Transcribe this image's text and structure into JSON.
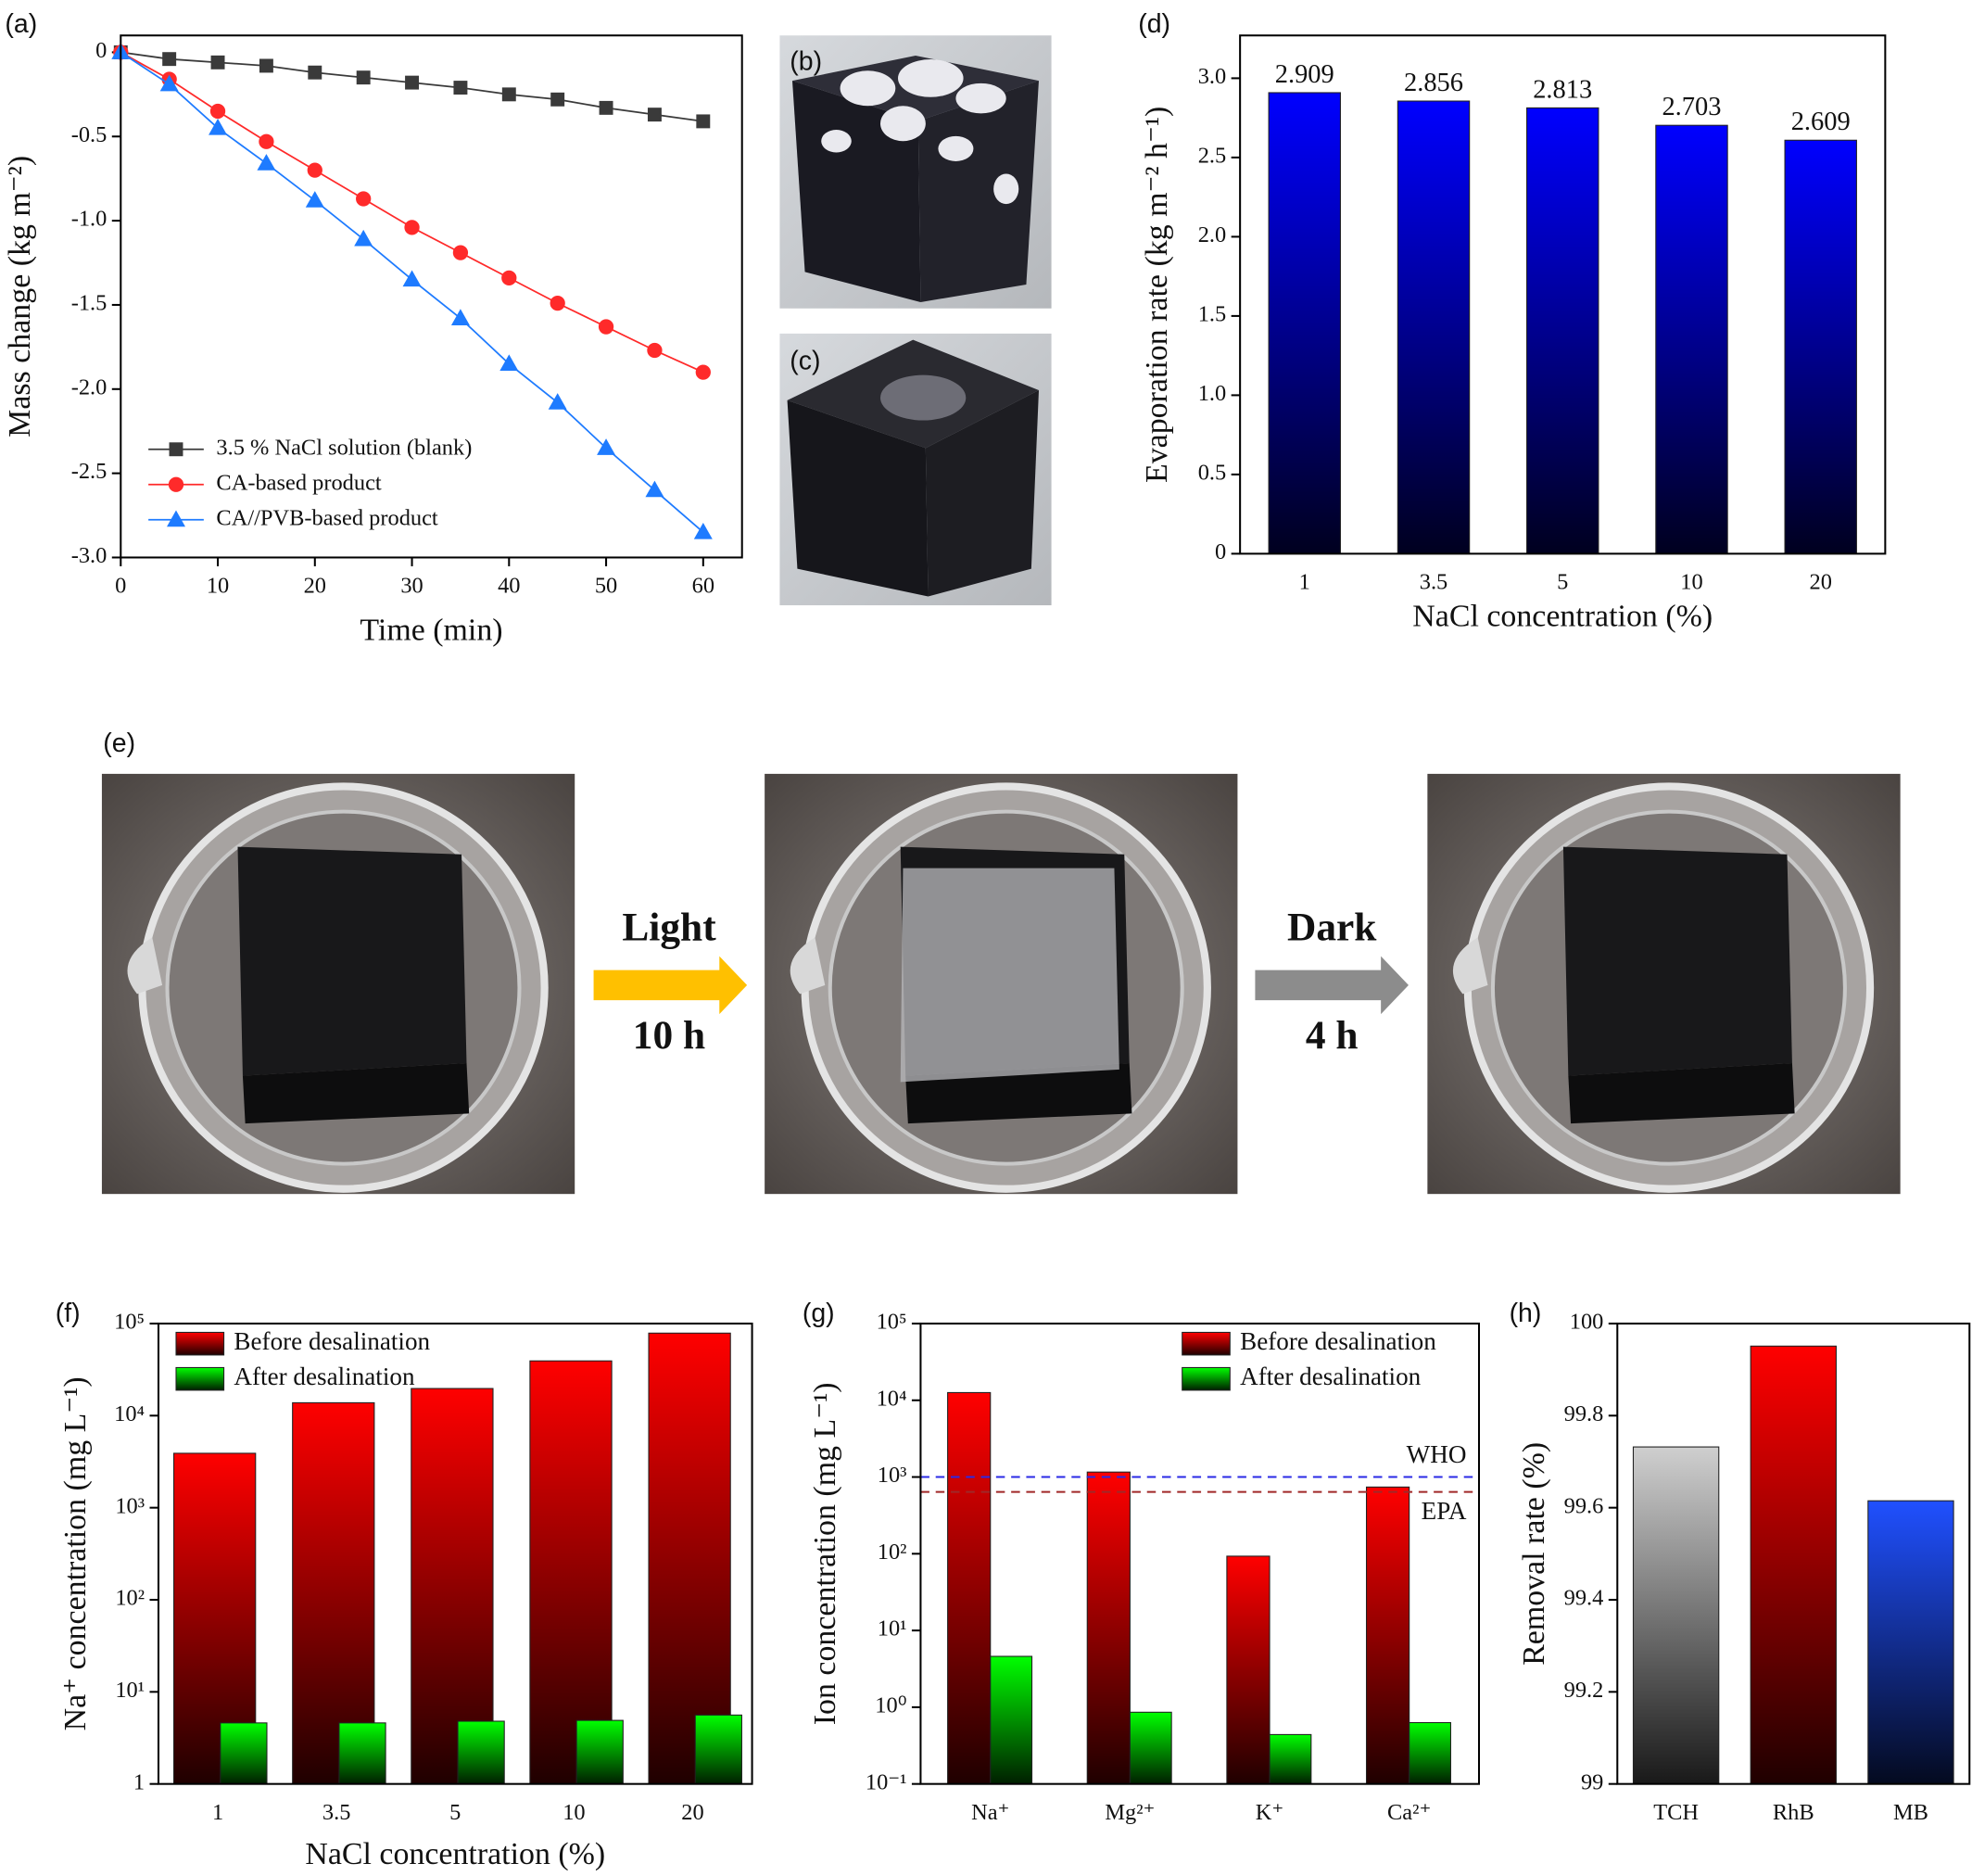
{
  "chart_data": [
    {
      "type": "line",
      "panel_label": "(a)",
      "x_label": "Time (min)",
      "y_label": "Mass change (kg m⁻²)",
      "x": [
        0,
        5,
        10,
        15,
        20,
        25,
        30,
        35,
        40,
        45,
        50,
        55,
        60
      ],
      "xlim": [
        0,
        64
      ],
      "xticks": [
        0,
        10,
        20,
        30,
        40,
        50,
        60
      ],
      "ylim": [
        -3,
        0.1
      ],
      "yticks": [
        0,
        -0.5,
        {
          "value": -1,
          "label": "-1.0"
        },
        -1.5,
        {
          "value": -2,
          "label": "-2.0"
        },
        -2.5,
        {
          "value": -3,
          "label": "-3.0"
        }
      ],
      "legend": "lower left",
      "series": [
        {
          "name": "3.5 % NaCl solution (blank)",
          "color": "#3a3a3a",
          "marker": "square",
          "values": [
            0,
            -0.04,
            -0.06,
            -0.08,
            -0.12,
            -0.15,
            -0.18,
            -0.21,
            -0.25,
            -0.28,
            -0.33,
            -0.37,
            -0.41
          ]
        },
        {
          "name": "CA-based product",
          "color": "#ff2a2a",
          "marker": "circle",
          "values": [
            0,
            -0.16,
            -0.35,
            -0.53,
            -0.7,
            -0.87,
            -1.04,
            -1.19,
            -1.34,
            -1.49,
            -1.63,
            -1.77,
            -1.9
          ]
        },
        {
          "name": "CA//PVB-based product",
          "color": "#1e7bff",
          "marker": "triangle",
          "values": [
            0,
            -0.19,
            -0.45,
            -0.66,
            -0.88,
            -1.11,
            -1.35,
            -1.58,
            -1.85,
            -2.08,
            -2.35,
            -2.6,
            -2.85
          ]
        }
      ]
    },
    {
      "type": "bar",
      "panel_label": "(d)",
      "x_label": "NaCl concentration (%)",
      "y_label": "Evaporation rate (kg m⁻² h⁻¹)",
      "categories": [
        "1",
        "3.5",
        "5",
        "10",
        "20"
      ],
      "values": [
        2.909,
        2.856,
        2.813,
        2.703,
        2.609
      ],
      "color": "#0000ff",
      "gradient": true,
      "data_labels": true,
      "ylim": [
        0,
        3.27
      ],
      "yticks": [
        0,
        0.5,
        {
          "value": 1,
          "label": "1.0"
        },
        1.5,
        {
          "value": 2,
          "label": "2.0"
        },
        2.5,
        {
          "value": 3,
          "label": "3.0"
        }
      ]
    },
    {
      "type": "bar",
      "panel_label": "(f)",
      "x_label": "NaCl concentration (%)",
      "y_label": "Na⁺ concentration (mg L⁻¹)",
      "categories": [
        "1",
        "3.5",
        "5",
        "10",
        "20"
      ],
      "yscale": "log",
      "gradient": true,
      "legend": "upper left",
      "ylim": [
        1,
        100000
      ],
      "yticks": [
        1,
        {
          "value": 10,
          "label": "10¹"
        },
        {
          "value": 100,
          "label": "10²"
        },
        {
          "value": 1000,
          "label": "10³"
        },
        {
          "value": 10000,
          "label": "10⁴"
        },
        {
          "value": 100000,
          "label": "10⁵"
        }
      ],
      "series": [
        {
          "name": "Before desalination",
          "color": "#ff0000",
          "values": [
            3900,
            13800,
            19700,
            39300,
            78700
          ]
        },
        {
          "name": "After desalination",
          "color": "#00ff00",
          "values": [
            4.6,
            4.6,
            4.8,
            4.9,
            5.6
          ]
        }
      ]
    },
    {
      "type": "bar",
      "panel_label": "(g)",
      "y_label": "Ion concentration (mg L⁻¹)",
      "categories": [
        "Na⁺",
        "Mg²⁺",
        "K⁺",
        "Ca²⁺"
      ],
      "yscale": "log",
      "gradient": true,
      "legend": "upper right",
      "ylim": [
        0.1,
        100000
      ],
      "yticks": [
        {
          "value": 0.1,
          "label": "10⁻¹"
        },
        {
          "value": 1,
          "label": "10⁰"
        },
        {
          "value": 10,
          "label": "10¹"
        },
        {
          "value": 100,
          "label": "10²"
        },
        {
          "value": 1000,
          "label": "10³"
        },
        {
          "value": 10000,
          "label": "10⁴"
        },
        {
          "value": 100000,
          "label": "10⁵"
        }
      ],
      "series": [
        {
          "name": "Before desalination",
          "color": "#ff0000",
          "values": [
            12600,
            1160,
            93,
            740
          ]
        },
        {
          "name": "After desalination",
          "color": "#00ff00",
          "values": [
            4.6,
            0.86,
            0.44,
            0.63
          ]
        }
      ],
      "reference_lines": [
        {
          "label": "WHO",
          "value": 1000,
          "color": "#2a2ae6"
        },
        {
          "label": "EPA",
          "value": 640,
          "color": "#a02828"
        }
      ]
    },
    {
      "type": "bar",
      "panel_label": "(h)",
      "y_label": "Removal rate (%)",
      "categories": [
        "TCH",
        "RhB",
        "MB"
      ],
      "values": [
        99.732,
        99.951,
        99.615
      ],
      "colors": [
        "#cfcfcf",
        "#ff0000",
        "#2050ff"
      ],
      "gradient": true,
      "ylim": [
        99,
        100
      ],
      "yticks": [
        99,
        99.2,
        99.4,
        99.6,
        99.8,
        100
      ]
    }
  ],
  "photos": {
    "panels": [
      "(b)",
      "(c)",
      "(e)"
    ],
    "arrows": [
      {
        "label": "Light",
        "duration": "10 h",
        "color": "#ffc000"
      },
      {
        "label": "Dark",
        "duration": "4 h",
        "color": "#8c8c8c"
      }
    ]
  }
}
